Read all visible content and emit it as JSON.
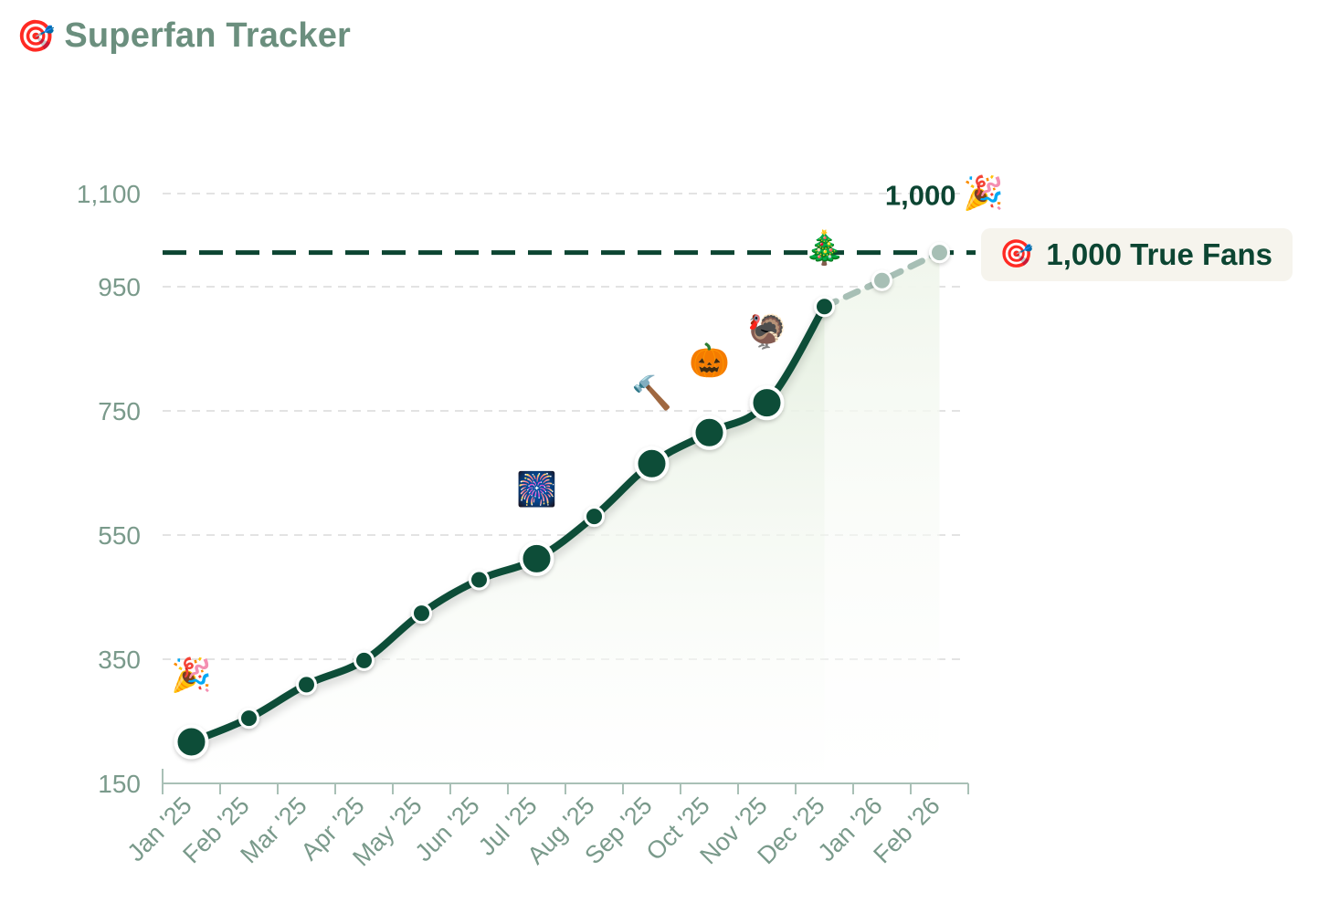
{
  "header": {
    "icon": "🎯",
    "title": "Superfan Tracker"
  },
  "goal_badge": {
    "icon": "🎯",
    "label": "1,000 True Fans"
  },
  "chart_data": {
    "type": "line",
    "title": "",
    "xlabel": "",
    "ylabel": "",
    "ylim": [
      150,
      1100
    ],
    "y_ticks": [
      150,
      350,
      550,
      750,
      950,
      1100
    ],
    "y_tick_labels": [
      "150",
      "350",
      "550",
      "750",
      "950",
      "1,100"
    ],
    "grid": true,
    "categories": [
      "Jan '25",
      "Feb '25",
      "Mar '25",
      "Apr '25",
      "May '25",
      "Jun '25",
      "Jul '25",
      "Aug '25",
      "Sep '25",
      "Oct '25",
      "Nov '25",
      "Dec '25",
      "Jan '26",
      "Feb '26"
    ],
    "points": [
      {
        "x": 0.5,
        "y": 217,
        "size": "large",
        "projected": false
      },
      {
        "x": 1.5,
        "y": 255,
        "size": "small",
        "projected": false
      },
      {
        "x": 2.5,
        "y": 309,
        "size": "small",
        "projected": false
      },
      {
        "x": 3.5,
        "y": 348,
        "size": "small",
        "projected": false
      },
      {
        "x": 4.5,
        "y": 424,
        "size": "small",
        "projected": false
      },
      {
        "x": 5.5,
        "y": 478,
        "size": "small",
        "projected": false
      },
      {
        "x": 6.5,
        "y": 512,
        "size": "large",
        "projected": false
      },
      {
        "x": 7.5,
        "y": 580,
        "size": "small",
        "projected": false
      },
      {
        "x": 8.5,
        "y": 665,
        "size": "large",
        "projected": false
      },
      {
        "x": 9.5,
        "y": 715,
        "size": "large",
        "projected": false
      },
      {
        "x": 10.5,
        "y": 763,
        "size": "large",
        "projected": false
      },
      {
        "x": 11.5,
        "y": 918,
        "size": "small",
        "projected": false
      },
      {
        "x": 12.5,
        "y": 960,
        "size": "small",
        "projected": true
      },
      {
        "x": 13.5,
        "y": 1005,
        "size": "small",
        "projected": true
      }
    ],
    "goal": {
      "value": 1005,
      "label": "1,000 True Fans"
    },
    "end_label": "1,000",
    "end_emoji": "🎉",
    "milestones": [
      {
        "x": 0.5,
        "y": 326,
        "emoji": "🎉"
      },
      {
        "x": 6.5,
        "y": 625,
        "emoji": "🎆"
      },
      {
        "x": 8.5,
        "y": 780,
        "emoji": "🔨"
      },
      {
        "x": 9.5,
        "y": 832,
        "emoji": "🎃"
      },
      {
        "x": 10.5,
        "y": 879,
        "emoji": "🦃"
      },
      {
        "x": 11.5,
        "y": 1014,
        "emoji": "🎄"
      }
    ],
    "colors": {
      "line": "#0c4d38",
      "projected": "#a7bfb5",
      "goal_line": "#0c4532",
      "area": "#eef5ea",
      "grid": "#e3e3e3",
      "axis": "#a9c0b6",
      "tick_text": "#7a9a8b"
    }
  }
}
